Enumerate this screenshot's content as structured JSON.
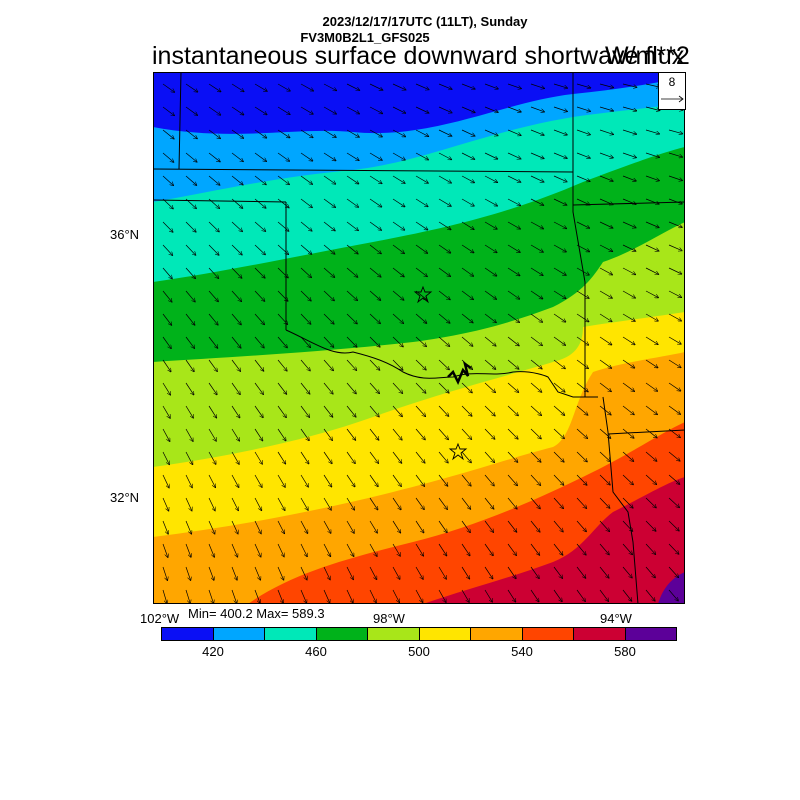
{
  "header": {
    "line1": "2023/12/17/17UTC (11LT), Sunday",
    "line2": "FV3M0B2L1_GFS025",
    "title": "instantaneous surface downward shortwave flux",
    "units": "W/m**2"
  },
  "reference_vector": {
    "label": "8"
  },
  "axes": {
    "lat_labels": [
      "36°N",
      "32°N"
    ],
    "lon_labels": [
      "102°W",
      "98°W",
      "94°W"
    ]
  },
  "stats": {
    "text": "Min= 400.2 Max= 589.3",
    "min": 400.2,
    "max": 589.3
  },
  "colorbar": {
    "colors": [
      "#0a0ff5",
      "#00a6ff",
      "#00e8b8",
      "#00b21a",
      "#a8e619",
      "#ffe500",
      "#ffa600",
      "#ff4500",
      "#cc0033",
      "#5c0099"
    ],
    "labels": [
      "420",
      "460",
      "500",
      "540",
      "580"
    ]
  },
  "markers": [
    "star",
    "star"
  ]
}
